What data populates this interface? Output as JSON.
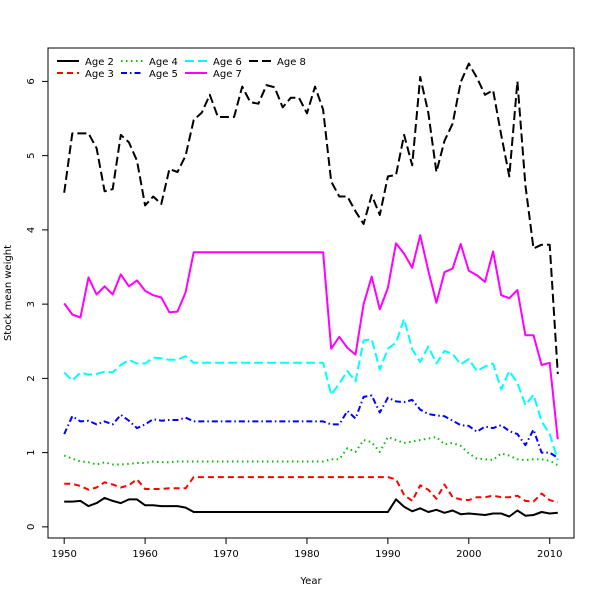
{
  "chart_data": {
    "type": "line",
    "xlabel": "Year",
    "ylabel": "Stock mean weight",
    "xlim": [
      1948,
      2013
    ],
    "ylim": [
      -0.15,
      6.45
    ],
    "xticks": [
      1950,
      1960,
      1970,
      1980,
      1990,
      2000,
      2010
    ],
    "yticks": [
      0,
      1,
      2,
      3,
      4,
      5,
      6
    ],
    "grid": false,
    "legend_position": "top-left",
    "x": [
      1950,
      1951,
      1952,
      1953,
      1954,
      1955,
      1956,
      1957,
      1958,
      1959,
      1960,
      1961,
      1962,
      1963,
      1964,
      1965,
      1966,
      1967,
      1968,
      1969,
      1970,
      1971,
      1972,
      1973,
      1974,
      1975,
      1976,
      1977,
      1978,
      1979,
      1980,
      1981,
      1982,
      1983,
      1984,
      1985,
      1986,
      1987,
      1988,
      1989,
      1990,
      1991,
      1992,
      1993,
      1994,
      1995,
      1996,
      1997,
      1998,
      1999,
      2000,
      2001,
      2002,
      2003,
      2004,
      2005,
      2006,
      2007,
      2008,
      2009,
      2010,
      2011
    ],
    "series": [
      {
        "name": "Age 2",
        "color": "#000000",
        "dash": "solid",
        "values": [
          0.34,
          0.34,
          0.35,
          0.28,
          0.32,
          0.39,
          0.35,
          0.32,
          0.37,
          0.37,
          0.29,
          0.29,
          0.28,
          0.28,
          0.28,
          0.26,
          0.2,
          0.2,
          0.2,
          0.2,
          0.2,
          0.2,
          0.2,
          0.2,
          0.2,
          0.2,
          0.2,
          0.2,
          0.2,
          0.2,
          0.2,
          0.2,
          0.2,
          0.2,
          0.2,
          0.2,
          0.2,
          0.2,
          0.2,
          0.2,
          0.2,
          0.37,
          0.27,
          0.21,
          0.25,
          0.2,
          0.23,
          0.19,
          0.22,
          0.17,
          0.18,
          0.17,
          0.16,
          0.18,
          0.18,
          0.14,
          0.22,
          0.15,
          0.16,
          0.2,
          0.18,
          0.19
        ]
      },
      {
        "name": "Age 3",
        "color": "#ff0000",
        "dash": "dashed",
        "values": [
          0.58,
          0.58,
          0.55,
          0.5,
          0.53,
          0.6,
          0.57,
          0.53,
          0.56,
          0.64,
          0.51,
          0.51,
          0.51,
          0.52,
          0.52,
          0.52,
          0.67,
          0.67,
          0.67,
          0.67,
          0.67,
          0.67,
          0.67,
          0.67,
          0.67,
          0.67,
          0.67,
          0.67,
          0.67,
          0.67,
          0.67,
          0.67,
          0.67,
          0.67,
          0.67,
          0.67,
          0.67,
          0.67,
          0.67,
          0.67,
          0.67,
          0.64,
          0.43,
          0.35,
          0.56,
          0.5,
          0.38,
          0.57,
          0.4,
          0.37,
          0.36,
          0.4,
          0.4,
          0.42,
          0.4,
          0.4,
          0.42,
          0.35,
          0.34,
          0.45,
          0.36,
          0.33
        ]
      },
      {
        "name": "Age 4",
        "color": "#00c000",
        "dash": "dotted",
        "values": [
          0.96,
          0.92,
          0.88,
          0.87,
          0.84,
          0.87,
          0.84,
          0.84,
          0.85,
          0.86,
          0.86,
          0.88,
          0.87,
          0.87,
          0.88,
          0.88,
          0.88,
          0.88,
          0.88,
          0.88,
          0.88,
          0.88,
          0.88,
          0.88,
          0.88,
          0.88,
          0.88,
          0.88,
          0.88,
          0.88,
          0.88,
          0.88,
          0.88,
          0.91,
          0.91,
          1.06,
          1.01,
          1.17,
          1.14,
          1.01,
          1.21,
          1.17,
          1.13,
          1.15,
          1.17,
          1.19,
          1.21,
          1.11,
          1.13,
          1.09,
          0.99,
          0.92,
          0.91,
          0.9,
          0.99,
          0.96,
          0.91,
          0.9,
          0.91,
          0.91,
          0.89,
          0.83
        ]
      },
      {
        "name": "Age 5",
        "color": "#0000ff",
        "dash": "dashdot",
        "values": [
          1.25,
          1.49,
          1.42,
          1.43,
          1.38,
          1.42,
          1.38,
          1.51,
          1.43,
          1.33,
          1.38,
          1.45,
          1.43,
          1.44,
          1.44,
          1.47,
          1.42,
          1.42,
          1.42,
          1.42,
          1.42,
          1.42,
          1.42,
          1.42,
          1.42,
          1.42,
          1.42,
          1.42,
          1.42,
          1.42,
          1.42,
          1.42,
          1.42,
          1.38,
          1.38,
          1.56,
          1.46,
          1.75,
          1.77,
          1.54,
          1.74,
          1.69,
          1.68,
          1.71,
          1.58,
          1.52,
          1.5,
          1.49,
          1.43,
          1.37,
          1.36,
          1.28,
          1.35,
          1.33,
          1.37,
          1.29,
          1.25,
          1.1,
          1.31,
          1.0,
          1.0,
          0.93
        ]
      },
      {
        "name": "Age 6",
        "color": "#00ffff",
        "dash": "longdash",
        "values": [
          2.08,
          1.97,
          2.08,
          2.05,
          2.06,
          2.09,
          2.08,
          2.18,
          2.25,
          2.2,
          2.2,
          2.28,
          2.27,
          2.25,
          2.25,
          2.3,
          2.21,
          2.21,
          2.21,
          2.21,
          2.21,
          2.21,
          2.21,
          2.21,
          2.21,
          2.21,
          2.21,
          2.21,
          2.21,
          2.21,
          2.21,
          2.21,
          2.21,
          1.78,
          1.93,
          2.1,
          1.96,
          2.51,
          2.53,
          2.12,
          2.4,
          2.48,
          2.8,
          2.39,
          2.22,
          2.43,
          2.2,
          2.37,
          2.33,
          2.19,
          2.26,
          2.1,
          2.16,
          2.2,
          1.85,
          2.1,
          1.94,
          1.64,
          1.78,
          1.42,
          1.25,
          0.9
        ]
      },
      {
        "name": "Age 7",
        "color": "#ff00ff",
        "dash": "solid",
        "values": [
          3.01,
          2.86,
          2.82,
          3.36,
          3.13,
          3.24,
          3.13,
          3.4,
          3.24,
          3.32,
          3.18,
          3.12,
          3.09,
          2.89,
          2.9,
          3.16,
          3.7,
          3.7,
          3.7,
          3.7,
          3.7,
          3.7,
          3.7,
          3.7,
          3.7,
          3.7,
          3.7,
          3.7,
          3.7,
          3.7,
          3.7,
          3.7,
          3.7,
          2.4,
          2.56,
          2.41,
          2.32,
          3.0,
          3.37,
          2.93,
          3.22,
          3.82,
          3.68,
          3.49,
          3.93,
          3.45,
          3.02,
          3.43,
          3.48,
          3.81,
          3.45,
          3.39,
          3.3,
          3.71,
          3.12,
          3.08,
          3.19,
          2.58,
          2.58,
          2.18,
          2.21,
          1.18
        ]
      },
      {
        "name": "Age 8",
        "color": "#000000",
        "dash": "longdash",
        "values": [
          4.5,
          5.3,
          5.3,
          5.3,
          5.1,
          4.52,
          4.55,
          5.28,
          5.18,
          4.93,
          4.33,
          4.45,
          4.35,
          4.82,
          4.78,
          5.0,
          5.48,
          5.58,
          5.82,
          5.52,
          5.52,
          5.52,
          5.93,
          5.72,
          5.7,
          5.95,
          5.92,
          5.65,
          5.78,
          5.78,
          5.57,
          5.93,
          5.62,
          4.65,
          4.45,
          4.45,
          4.25,
          4.08,
          4.47,
          4.2,
          4.72,
          4.74,
          5.28,
          4.87,
          6.06,
          5.58,
          4.78,
          5.2,
          5.43,
          5.99,
          6.24,
          6.05,
          5.82,
          5.88,
          5.28,
          4.72,
          6.0,
          4.6,
          3.75,
          3.8,
          3.8,
          2.06
        ]
      }
    ]
  }
}
